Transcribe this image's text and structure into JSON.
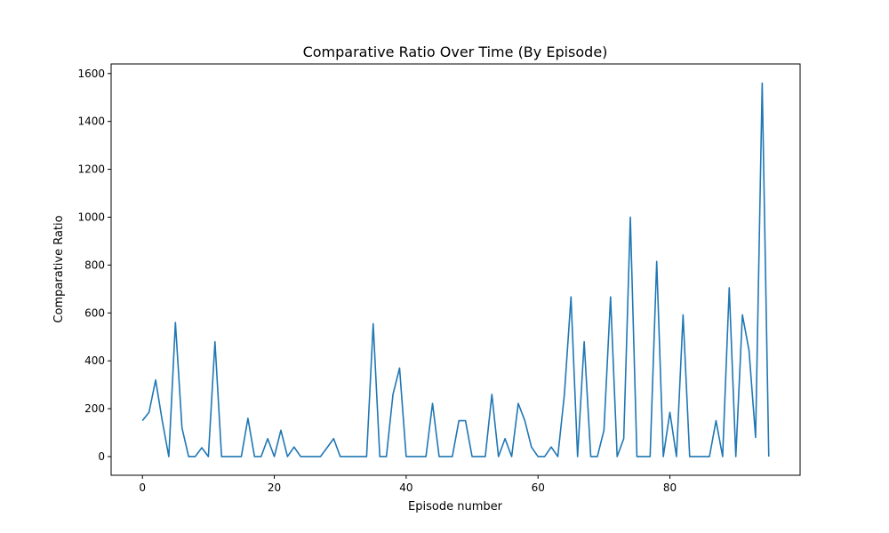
{
  "chart_data": {
    "type": "line",
    "title": "Comparative Ratio Over Time (By Episode)",
    "xlabel": "Episode number",
    "ylabel": "Comparative Ratio",
    "xlim": [
      -4.75,
      99.75
    ],
    "ylim": [
      -78,
      1640
    ],
    "xticks": [
      0,
      20,
      40,
      60,
      80
    ],
    "yticks": [
      0,
      200,
      400,
      600,
      800,
      1000,
      1200,
      1400,
      1600
    ],
    "grid": false,
    "color": "#1f77b4",
    "series": [
      {
        "x": [
          0,
          1,
          2,
          3,
          4,
          5,
          6,
          7,
          8,
          9,
          10,
          11,
          12,
          13,
          14,
          15,
          16,
          17,
          18,
          19,
          20,
          21,
          22,
          23,
          24,
          25,
          26,
          27,
          28,
          29,
          30,
          31,
          32,
          33,
          34,
          35,
          36,
          37,
          38,
          39,
          40,
          41,
          42,
          43,
          44,
          45,
          46,
          47,
          48,
          49,
          50,
          51,
          52,
          53,
          54,
          55,
          56,
          57,
          58,
          59,
          60,
          61,
          62,
          63,
          64,
          65,
          66,
          67,
          68,
          69,
          70,
          71,
          72,
          73,
          74,
          75,
          76,
          77,
          78,
          79,
          80,
          81,
          82,
          83,
          84,
          85,
          86,
          87,
          88,
          89,
          90,
          91,
          92,
          93,
          94,
          95
        ],
        "values": [
          150,
          185,
          320,
          150,
          0,
          560,
          120,
          0,
          0,
          37,
          0,
          480,
          0,
          0,
          0,
          0,
          160,
          0,
          0,
          75,
          0,
          110,
          0,
          40,
          0,
          0,
          0,
          0,
          37,
          75,
          0,
          0,
          0,
          0,
          0,
          555,
          0,
          0,
          260,
          370,
          0,
          0,
          0,
          0,
          222,
          0,
          0,
          0,
          150,
          150,
          0,
          0,
          0,
          260,
          0,
          75,
          0,
          222,
          150,
          40,
          0,
          0,
          40,
          0,
          260,
          667,
          0,
          480,
          0,
          0,
          110,
          667,
          0,
          75,
          1000,
          0,
          0,
          0,
          815,
          0,
          185,
          0,
          592,
          0,
          0,
          0,
          0,
          150,
          0,
          705,
          0,
          592,
          444,
          80,
          1560,
          0
        ]
      }
    ]
  }
}
